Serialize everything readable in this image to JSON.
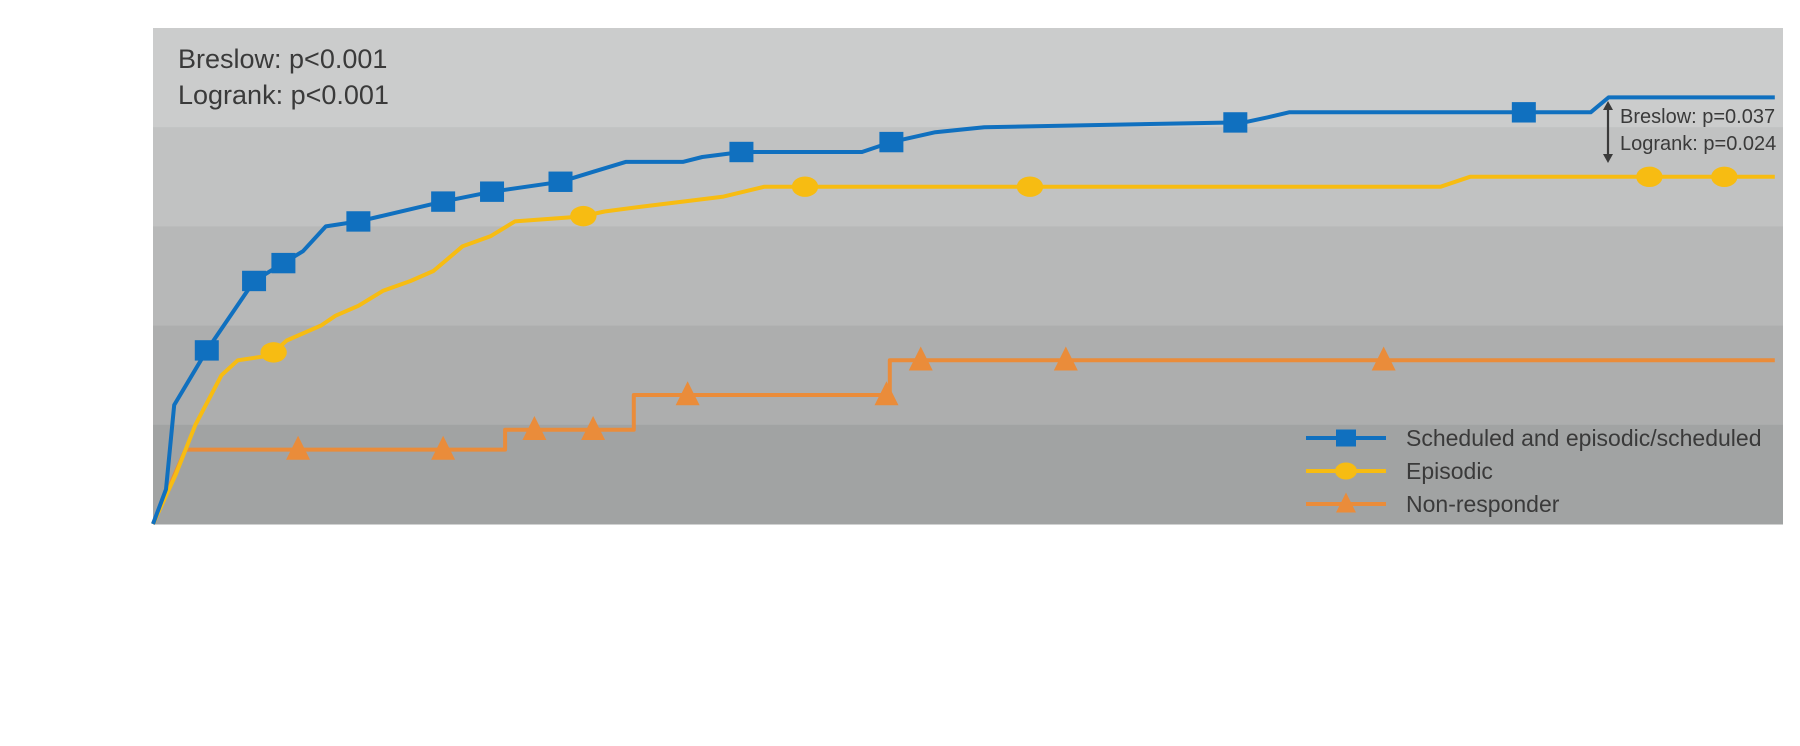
{
  "chart_data": {
    "type": "line",
    "subtype": "kaplan-meier cumulative incidence (step)",
    "title": "",
    "xlabel": "",
    "ylabel": "",
    "xlim": [
      0,
      100
    ],
    "ylim": [
      0,
      100
    ],
    "grid": "horizontal bands",
    "legend_position": "bottom-right",
    "annotations": {
      "overall": [
        "Breslow: p<0.001",
        "Logrank: p<0.001"
      ],
      "pairwise": [
        "Breslow: p=0.037",
        "Logrank: p=0.024"
      ]
    },
    "series": [
      {
        "name": "Scheduled and episodic/scheduled",
        "color": "#1070bf",
        "marker": "square",
        "points": [
          [
            0,
            0
          ],
          [
            0.8,
            7
          ],
          [
            1.3,
            24
          ],
          [
            3.3,
            35
          ],
          [
            6.2,
            49
          ],
          [
            7.7,
            52
          ],
          [
            9.2,
            55
          ],
          [
            10.6,
            60
          ],
          [
            12.6,
            61
          ],
          [
            13.9,
            62
          ],
          [
            17.8,
            65
          ],
          [
            20.8,
            67
          ],
          [
            25,
            69
          ],
          [
            27,
            71
          ],
          [
            29,
            73
          ],
          [
            32.5,
            73
          ],
          [
            33.7,
            74
          ],
          [
            36.1,
            75
          ],
          [
            43.5,
            75
          ],
          [
            45.3,
            77
          ],
          [
            48,
            79
          ],
          [
            51,
            80
          ],
          [
            67,
            81
          ],
          [
            68.4,
            82
          ],
          [
            69.7,
            83
          ],
          [
            76,
            83
          ],
          [
            88.2,
            83
          ],
          [
            89.3,
            86
          ],
          [
            99.5,
            86
          ]
        ],
        "markers_x": [
          3.3,
          6.2,
          8.0,
          12.6,
          17.8,
          20.8,
          25.0,
          36.1,
          45.3,
          66.4,
          84.1
        ]
      },
      {
        "name": "Episodic",
        "color": "#f7bc12",
        "marker": "circle",
        "points": [
          [
            0,
            0
          ],
          [
            1.4,
            10
          ],
          [
            2.6,
            20
          ],
          [
            4.2,
            30
          ],
          [
            5.2,
            33
          ],
          [
            7.2,
            34
          ],
          [
            8.2,
            37
          ],
          [
            10.3,
            40
          ],
          [
            11.2,
            42
          ],
          [
            12.6,
            44
          ],
          [
            14.1,
            47
          ],
          [
            15.8,
            49
          ],
          [
            17.2,
            51
          ],
          [
            19,
            56
          ],
          [
            20.7,
            58
          ],
          [
            22.2,
            61
          ],
          [
            26.3,
            62
          ],
          [
            27.7,
            63
          ],
          [
            30,
            64
          ],
          [
            32.5,
            65
          ],
          [
            35,
            66
          ],
          [
            37.5,
            68
          ],
          [
            43,
            68
          ],
          [
            55,
            68
          ],
          [
            64,
            68
          ],
          [
            79,
            68
          ],
          [
            80.8,
            70
          ],
          [
            99.5,
            70
          ]
        ],
        "markers_x": [
          7.4,
          26.4,
          40.0,
          53.8,
          91.8,
          96.4
        ]
      },
      {
        "name": "Non-responder",
        "color": "#ea8c3a",
        "marker": "triangle",
        "points": [
          [
            0,
            0
          ],
          [
            2,
            15
          ],
          [
            21.6,
            15
          ],
          [
            21.6,
            19
          ],
          [
            29.5,
            19
          ],
          [
            29.5,
            26
          ],
          [
            45.2,
            26
          ],
          [
            45.2,
            33
          ],
          [
            99.5,
            33
          ]
        ],
        "markers_x": [
          8.9,
          17.8,
          23.4,
          27.0,
          32.8,
          45.0,
          47.1,
          56.0,
          75.5
        ]
      }
    ]
  }
}
